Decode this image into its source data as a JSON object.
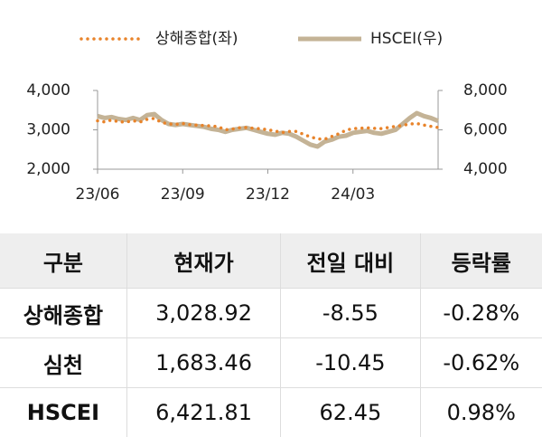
{
  "chart_data": {
    "type": "line",
    "categories": [
      "23/06",
      null,
      null,
      null,
      null,
      null,
      null,
      null,
      null,
      null,
      null,
      null,
      "23/09",
      null,
      null,
      null,
      null,
      null,
      null,
      null,
      null,
      null,
      null,
      null,
      "23/12",
      null,
      null,
      null,
      null,
      null,
      null,
      null,
      null,
      null,
      null,
      null,
      "24/03",
      null,
      null,
      null,
      null,
      null,
      null,
      null,
      null,
      null,
      null,
      null,
      null
    ],
    "series": [
      {
        "name": "상해종합(좌)",
        "color": "#e8832a",
        "style": "dotted",
        "values": [
          3230,
          3200,
          3250,
          3200,
          3200,
          3230,
          3200,
          3270,
          3290,
          3190,
          3150,
          3140,
          3160,
          3130,
          3120,
          3110,
          3100,
          3080,
          3000,
          3020,
          3050,
          3060,
          3040,
          3030,
          3000,
          2970,
          2930,
          2960,
          2960,
          2890,
          2820,
          2770,
          2760,
          2830,
          2900,
          2990,
          3030,
          3040,
          3050,
          3040,
          3030,
          3060,
          3090,
          3110,
          3150,
          3160,
          3120,
          3090,
          3060
        ]
      },
      {
        "name": "HSCEI(우)",
        "color": "#c4b396",
        "style": "solid",
        "axis": "y2",
        "values": [
          6700,
          6600,
          6650,
          6550,
          6500,
          6600,
          6500,
          6750,
          6800,
          6500,
          6300,
          6250,
          6300,
          6250,
          6200,
          6150,
          6050,
          6000,
          5900,
          6000,
          6050,
          6100,
          6000,
          5900,
          5800,
          5750,
          5850,
          5800,
          5650,
          5450,
          5250,
          5150,
          5400,
          5500,
          5650,
          5700,
          5850,
          5900,
          5950,
          5850,
          5800,
          5900,
          6000,
          6300,
          6600,
          6850,
          6700,
          6600,
          6450
        ]
      }
    ],
    "ylim": [
      2000,
      4000
    ],
    "yticks": [
      {
        "value": 2000,
        "label": "2,000"
      },
      {
        "value": 3000,
        "label": "3,000"
      },
      {
        "value": 4000,
        "label": "4,000"
      }
    ],
    "y2lim": [
      4000,
      8000
    ],
    "y2ticks": [
      {
        "value": 4000,
        "label": "4,000"
      },
      {
        "value": 6000,
        "label": "6,000"
      },
      {
        "value": 8000,
        "label": "8,000"
      }
    ],
    "legend": "top"
  },
  "table": {
    "header": [
      "구분",
      "현재가",
      "전일 대비",
      "등락률"
    ],
    "rows": [
      [
        "상해종합",
        "3,028.92",
        "-8.55",
        "-0.28%"
      ],
      [
        "심천",
        "1,683.46",
        "-10.45",
        "-0.62%"
      ],
      [
        "HSCEI",
        "6,421.81",
        "62.45",
        "0.98%"
      ]
    ]
  }
}
